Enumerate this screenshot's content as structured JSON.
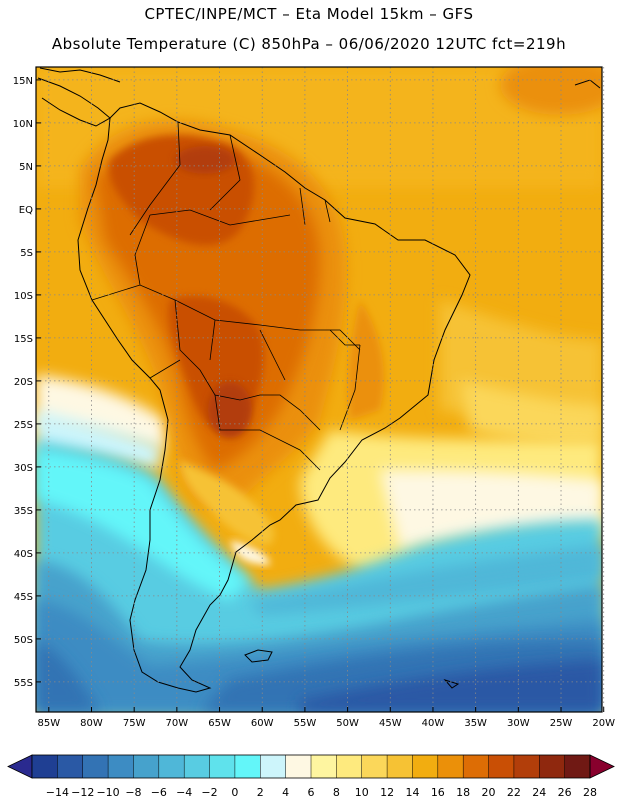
{
  "header": {
    "line1": "CPTEC/INPE/MCT –  Eta Model 15km – GFS",
    "line2": "Absolute Temperature (C) 850hPa – 06/06/2020 12UTC fct=219h"
  },
  "map": {
    "lat_labels": [
      "15N",
      "10N",
      "5N",
      "EQ",
      "5S",
      "10S",
      "15S",
      "20S",
      "25S",
      "30S",
      "35S",
      "40S",
      "45S",
      "50S",
      "55S"
    ],
    "lon_labels": [
      "85W",
      "80W",
      "75W",
      "70W",
      "65W",
      "60W",
      "55W",
      "50W",
      "45W",
      "40W",
      "35W",
      "30W",
      "25W",
      "20W"
    ],
    "lat_extent": [
      -58.5,
      16.5
    ],
    "lon_extent": [
      -86.5,
      -20.2
    ]
  },
  "colorbar": {
    "colors": [
      "#1f3f93",
      "#2a59a5",
      "#3373b4",
      "#3d8cc3",
      "#46a2cc",
      "#4fb7d8",
      "#58cce2",
      "#5fe2ec",
      "#63f6f9",
      "#cdf5fb",
      "#fef8e3",
      "#fef5a0",
      "#feea7e",
      "#fbd75a",
      "#f6c234",
      "#f2ad10",
      "#eb9009",
      "#dd6d05",
      "#c94f05",
      "#b23e0a",
      "#8f280e",
      "#701914"
    ],
    "tick_labels": [
      "-14",
      "-12",
      "-10",
      "-8",
      "-6",
      "-4",
      "-2",
      "0",
      "2",
      "4",
      "6",
      "8",
      "10",
      "12",
      "14",
      "16",
      "18",
      "20",
      "22",
      "24",
      "26",
      "28"
    ],
    "under_color": "#2a2a8f",
    "over_color": "#88002d"
  }
}
